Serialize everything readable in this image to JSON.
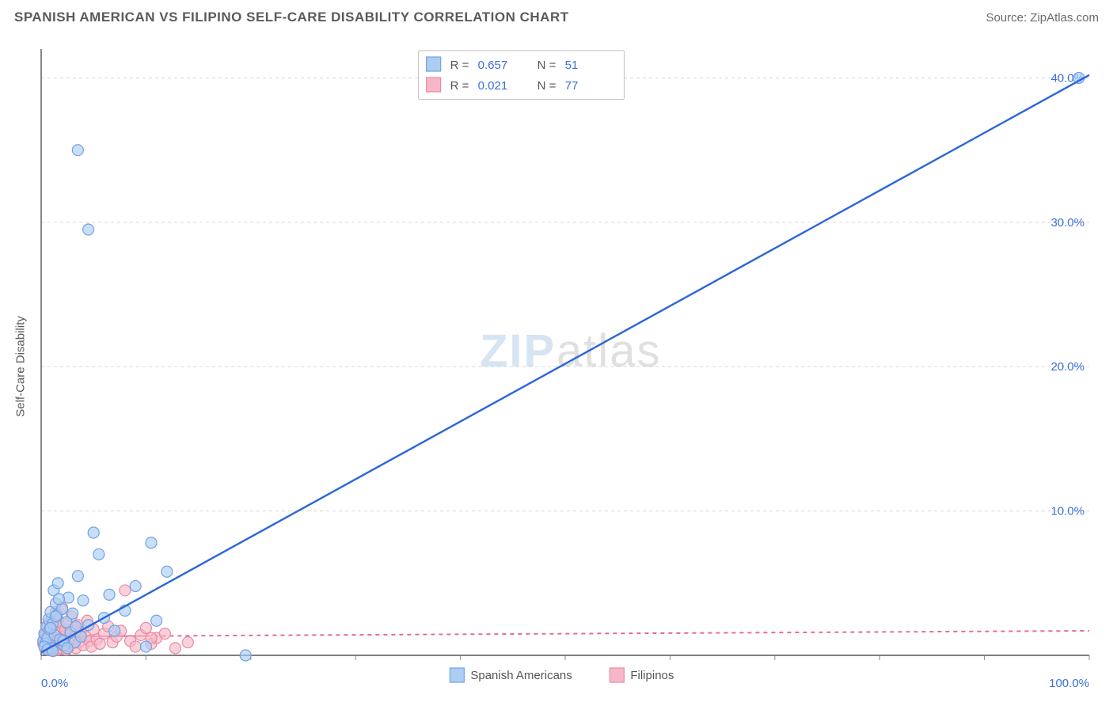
{
  "title": "SPANISH AMERICAN VS FILIPINO SELF-CARE DISABILITY CORRELATION CHART",
  "source_label": "Source: ZipAtlas.com",
  "ylabel": "Self-Care Disability",
  "watermark": {
    "part1": "ZIP",
    "part2": "atlas"
  },
  "chart": {
    "type": "scatter",
    "background_color": "#ffffff",
    "grid_color": "#d8d8d8",
    "axis_color": "#555555",
    "x": {
      "min": 0,
      "max": 100,
      "ticks": [
        0,
        10,
        20,
        30,
        40,
        50,
        60,
        70,
        80,
        90,
        100
      ],
      "labeled_ticks": [
        0,
        100
      ],
      "unit": "%"
    },
    "y": {
      "min": 0,
      "max": 42,
      "gridlines": [
        10,
        20,
        30,
        40
      ],
      "unit": "%"
    },
    "tick_label_color": "#3a6fd8",
    "tick_label_fontsize": 15,
    "series": [
      {
        "id": "spanish_americans",
        "label": "Spanish Americans",
        "fill": "#aecdf2",
        "stroke": "#6ea3e6",
        "marker_radius": 7,
        "trend": {
          "slope": 0.4,
          "intercept": 0.2,
          "color": "#2a66d8",
          "width": 2.4,
          "dash": null
        },
        "R": "0.657",
        "N": "51",
        "points": [
          [
            0.2,
            1.0
          ],
          [
            0.3,
            1.5
          ],
          [
            0.4,
            0.8
          ],
          [
            0.5,
            2.0
          ],
          [
            0.6,
            1.2
          ],
          [
            0.7,
            2.5
          ],
          [
            0.8,
            1.8
          ],
          [
            0.9,
            3.0
          ],
          [
            1.0,
            0.5
          ],
          [
            1.1,
            2.2
          ],
          [
            1.2,
            4.5
          ],
          [
            1.3,
            1.4
          ],
          [
            1.4,
            3.6
          ],
          [
            1.5,
            2.8
          ],
          [
            1.6,
            5.0
          ],
          [
            1.8,
            1.1
          ],
          [
            2.0,
            3.2
          ],
          [
            2.2,
            0.7
          ],
          [
            2.4,
            2.3
          ],
          [
            2.6,
            4.0
          ],
          [
            2.8,
            1.6
          ],
          [
            3.0,
            2.9
          ],
          [
            3.2,
            0.9
          ],
          [
            3.5,
            5.5
          ],
          [
            3.8,
            1.3
          ],
          [
            4.0,
            3.8
          ],
          [
            4.5,
            2.1
          ],
          [
            5.0,
            8.5
          ],
          [
            5.5,
            7.0
          ],
          [
            6.0,
            2.6
          ],
          [
            6.5,
            4.2
          ],
          [
            7.0,
            1.7
          ],
          [
            8.0,
            3.1
          ],
          [
            9.0,
            4.8
          ],
          [
            10.0,
            0.6
          ],
          [
            10.5,
            7.8
          ],
          [
            11.0,
            2.4
          ],
          [
            12.0,
            5.8
          ],
          [
            19.5,
            0.0
          ],
          [
            4.5,
            29.5
          ],
          [
            3.5,
            35.0
          ],
          [
            99.0,
            40.0
          ],
          [
            0.3,
            0.6
          ],
          [
            0.6,
            0.4
          ],
          [
            0.9,
            1.9
          ],
          [
            1.1,
            0.3
          ],
          [
            1.4,
            2.7
          ],
          [
            1.7,
            3.9
          ],
          [
            2.1,
            1.0
          ],
          [
            2.5,
            0.5
          ],
          [
            3.3,
            2.0
          ]
        ]
      },
      {
        "id": "filipinos",
        "label": "Filipinos",
        "fill": "#f6b8c8",
        "stroke": "#e98aa4",
        "marker_radius": 7,
        "trend": {
          "slope": 0.004,
          "intercept": 1.3,
          "color": "#e86b90",
          "width": 2,
          "dash": "5 5"
        },
        "R": "0.021",
        "N": "77",
        "points": [
          [
            0.2,
            0.8
          ],
          [
            0.3,
            1.2
          ],
          [
            0.35,
            0.5
          ],
          [
            0.4,
            1.5
          ],
          [
            0.45,
            0.9
          ],
          [
            0.5,
            1.8
          ],
          [
            0.55,
            0.6
          ],
          [
            0.6,
            2.0
          ],
          [
            0.65,
            1.1
          ],
          [
            0.7,
            0.4
          ],
          [
            0.75,
            1.6
          ],
          [
            0.8,
            2.3
          ],
          [
            0.85,
            0.7
          ],
          [
            0.9,
            1.3
          ],
          [
            0.95,
            1.9
          ],
          [
            1.0,
            0.5
          ],
          [
            1.05,
            2.6
          ],
          [
            1.1,
            1.0
          ],
          [
            1.15,
            0.3
          ],
          [
            1.2,
            1.7
          ],
          [
            1.25,
            2.1
          ],
          [
            1.3,
            0.8
          ],
          [
            1.35,
            1.4
          ],
          [
            1.4,
            3.0
          ],
          [
            1.45,
            0.6
          ],
          [
            1.5,
            1.9
          ],
          [
            1.55,
            1.1
          ],
          [
            1.6,
            0.4
          ],
          [
            1.65,
            2.4
          ],
          [
            1.7,
            1.5
          ],
          [
            1.75,
            0.9
          ],
          [
            1.8,
            1.2
          ],
          [
            1.85,
            2.0
          ],
          [
            1.9,
            0.5
          ],
          [
            1.95,
            1.6
          ],
          [
            2.0,
            3.3
          ],
          [
            2.1,
            0.7
          ],
          [
            2.2,
            1.3
          ],
          [
            2.3,
            1.8
          ],
          [
            2.4,
            0.4
          ],
          [
            2.5,
            2.2
          ],
          [
            2.6,
            1.0
          ],
          [
            2.7,
            0.6
          ],
          [
            2.8,
            1.5
          ],
          [
            2.9,
            2.7
          ],
          [
            3.0,
            0.8
          ],
          [
            3.1,
            1.2
          ],
          [
            3.2,
            1.9
          ],
          [
            3.3,
            0.5
          ],
          [
            3.4,
            1.4
          ],
          [
            3.5,
            2.1
          ],
          [
            3.6,
            0.9
          ],
          [
            3.8,
            1.6
          ],
          [
            4.0,
            0.7
          ],
          [
            4.2,
            1.3
          ],
          [
            4.4,
            2.4
          ],
          [
            4.6,
            1.0
          ],
          [
            4.8,
            0.6
          ],
          [
            5.0,
            1.8
          ],
          [
            5.3,
            1.1
          ],
          [
            5.6,
            0.8
          ],
          [
            6.0,
            1.5
          ],
          [
            6.4,
            2.0
          ],
          [
            6.8,
            0.9
          ],
          [
            7.2,
            1.3
          ],
          [
            7.6,
            1.7
          ],
          [
            8.0,
            4.5
          ],
          [
            8.5,
            1.0
          ],
          [
            9.0,
            0.6
          ],
          [
            9.5,
            1.4
          ],
          [
            10.0,
            1.9
          ],
          [
            10.5,
            0.8
          ],
          [
            11.0,
            1.2
          ],
          [
            11.8,
            1.5
          ],
          [
            12.8,
            0.5
          ],
          [
            14.0,
            0.9
          ],
          [
            10.5,
            1.2
          ]
        ]
      }
    ],
    "stats_box": {
      "rows": [
        {
          "swatch_fill": "#aecdf2",
          "swatch_stroke": "#6ea3e6",
          "r_label": "R =",
          "r_val": "0.657",
          "n_label": "N =",
          "n_val": "51"
        },
        {
          "swatch_fill": "#f6b8c8",
          "swatch_stroke": "#e98aa4",
          "r_label": "R =",
          "r_val": "0.021",
          "n_label": "N =",
          "n_val": "77"
        }
      ]
    },
    "bottom_legend": [
      {
        "swatch_fill": "#aecdf2",
        "swatch_stroke": "#6ea3e6",
        "label": "Spanish Americans"
      },
      {
        "swatch_fill": "#f6b8c8",
        "swatch_stroke": "#e98aa4",
        "label": "Filipinos"
      }
    ]
  }
}
